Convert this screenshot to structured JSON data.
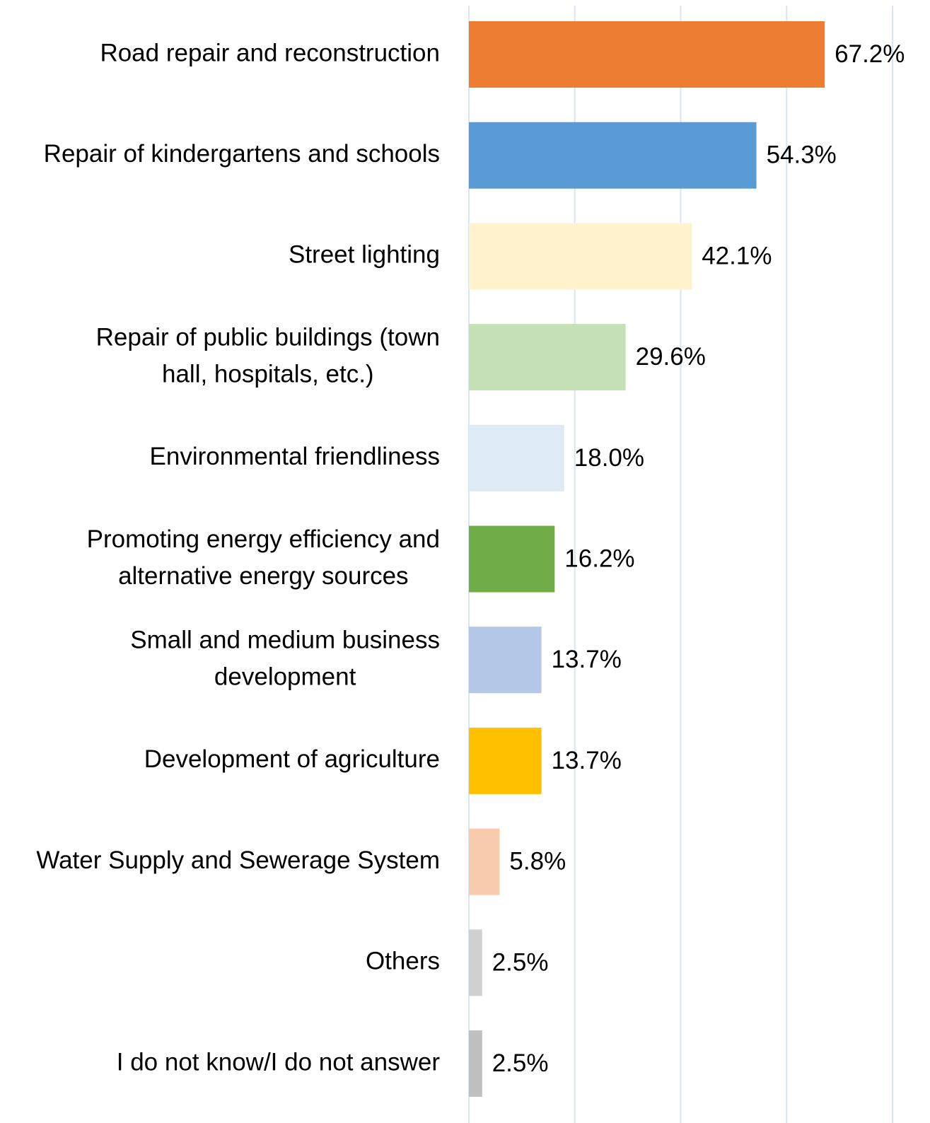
{
  "chart_data": {
    "type": "bar",
    "orientation": "horizontal",
    "categories": [
      "Road repair and reconstruction",
      "Repair of kindergartens and schools",
      "Street lighting",
      "Repair of public buildings (town hall, hospitals, etc.)",
      "Environmental friendliness",
      "Promoting energy efficiency and alternative energy sources",
      "Small and medium business development",
      "Development of agriculture",
      "Water Supply and Sewerage System",
      "Others",
      "I do not know/I do not answer"
    ],
    "category_lines": [
      [
        "Road repair and reconstruction"
      ],
      [
        "Repair of kindergartens and schools"
      ],
      [
        "Street lighting"
      ],
      [
        "Repair of public buildings (town",
        "hall, hospitals, etc.)"
      ],
      [
        "Environmental friendliness"
      ],
      [
        "Promoting energy efficiency and",
        "alternative energy sources"
      ],
      [
        "Small and medium business",
        "development"
      ],
      [
        "Development of agriculture"
      ],
      [
        "Water Supply and Sewerage System"
      ],
      [
        "Others"
      ],
      [
        "I do not know/I do not answer"
      ]
    ],
    "values": [
      67.2,
      54.3,
      42.1,
      29.6,
      18.0,
      16.2,
      13.7,
      13.7,
      5.8,
      2.5,
      2.5
    ],
    "value_labels": [
      "67.2%",
      "54.3%",
      "42.1%",
      "29.6%",
      "18.0%",
      "16.2%",
      "13.7%",
      "13.7%",
      "5.8%",
      "2.5%",
      "2.5%"
    ],
    "colors": [
      "#ED7D31",
      "#5B9BD5",
      "#FFF2CC",
      "#C5E0B4",
      "#DEEBF7",
      "#70AD47",
      "#B4C7E7",
      "#FFC000",
      "#F8CBAD",
      "#D0D0D0",
      "#BFBFBF"
    ],
    "xlim": [
      0,
      80
    ],
    "x_gridlines": [
      0,
      20,
      40,
      60,
      80
    ],
    "grid": true,
    "gridline_color": "#D9E6F2",
    "title": "",
    "xlabel": "",
    "ylabel": ""
  }
}
